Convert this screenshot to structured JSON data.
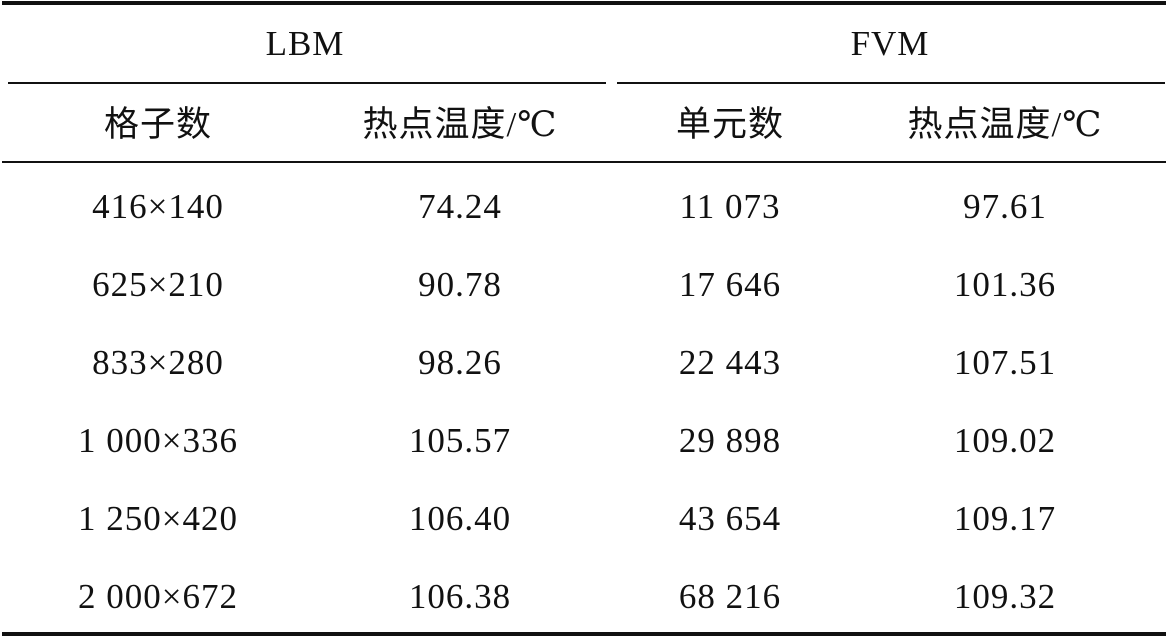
{
  "table": {
    "groups": [
      "LBM",
      "FVM"
    ],
    "header": [
      "格子数",
      "热点温度/℃",
      "单元数",
      "热点温度/℃"
    ],
    "rows": [
      [
        "416×140",
        "74.24",
        "11 073",
        "97.61"
      ],
      [
        "625×210",
        "90.78",
        "17 646",
        "101.36"
      ],
      [
        "833×280",
        "98.26",
        "22 443",
        "107.51"
      ],
      [
        "1 000×336",
        "105.57",
        "29 898",
        "109.02"
      ],
      [
        "1 250×420",
        "106.40",
        "43 654",
        "109.17"
      ],
      [
        "2 000×672",
        "106.38",
        "68 216",
        "109.32"
      ]
    ]
  }
}
